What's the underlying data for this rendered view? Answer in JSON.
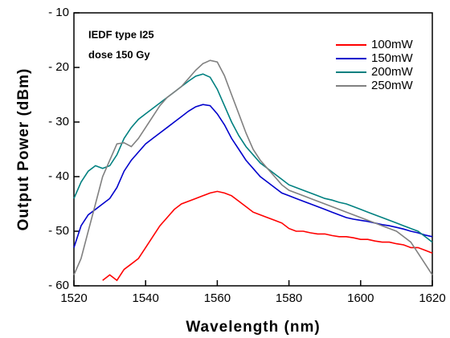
{
  "chart_data": {
    "type": "line",
    "xlabel": "Wavelength (nm)",
    "ylabel": "Output Power (dBm)",
    "annotations": [
      "IEDF type I25",
      "dose 150 Gy"
    ],
    "legend": "upper right",
    "xlim": [
      1520,
      1620
    ],
    "xticks": [
      1520,
      1540,
      1560,
      1580,
      1600,
      1620
    ],
    "ylim": [
      -60,
      -10
    ],
    "yticks": [
      {
        "value": -60,
        "label": "- 60"
      },
      {
        "value": -50,
        "label": "- 50"
      },
      {
        "value": -40,
        "label": "- 40"
      },
      {
        "value": -30,
        "label": "- 30"
      },
      {
        "value": -20,
        "label": "- 20"
      },
      {
        "value": -10,
        "label": "- 10"
      }
    ],
    "x": [
      1520,
      1522,
      1524,
      1526,
      1528,
      1530,
      1532,
      1534,
      1536,
      1538,
      1540,
      1542,
      1544,
      1546,
      1548,
      1550,
      1552,
      1554,
      1556,
      1558,
      1560,
      1562,
      1564,
      1566,
      1568,
      1570,
      1572,
      1574,
      1576,
      1578,
      1580,
      1582,
      1584,
      1586,
      1588,
      1590,
      1592,
      1594,
      1596,
      1598,
      1600,
      1602,
      1604,
      1606,
      1608,
      1610,
      1612,
      1614,
      1616,
      1618,
      1620
    ],
    "series": [
      {
        "name": "100mW",
        "color": "#ff0000",
        "values": [
          null,
          null,
          null,
          null,
          -59,
          -58,
          -59,
          -57,
          -56,
          -55,
          -53,
          -51,
          -49,
          -47.5,
          -46,
          -45,
          -44.5,
          -44,
          -43.5,
          -43,
          -42.7,
          -43,
          -43.5,
          -44.5,
          -45.5,
          -46.5,
          -47,
          -47.5,
          -48,
          -48.5,
          -49.5,
          -50,
          -50,
          -50.3,
          -50.5,
          -50.5,
          -50.8,
          -51,
          -51,
          -51.2,
          -51.5,
          -51.5,
          -51.8,
          -52,
          -52,
          -52.3,
          -52.5,
          -53,
          -53,
          -53.5,
          -54
        ]
      },
      {
        "name": "150mW",
        "color": "#0000cc",
        "values": [
          -53,
          -49,
          -47,
          -46,
          -45,
          -44,
          -42,
          -39,
          -37,
          -35.5,
          -34,
          -33,
          -32,
          -31,
          -30,
          -29,
          -28,
          -27.2,
          -26.8,
          -27,
          -28.5,
          -30.5,
          -33,
          -35,
          -37,
          -38.5,
          -40,
          -41,
          -42,
          -43,
          -43.5,
          -44,
          -44.5,
          -45,
          -45.5,
          -46,
          -46.5,
          -47,
          -47.5,
          -47.8,
          -48,
          -48.2,
          -48.5,
          -48.8,
          -49,
          -49.3,
          -49.6,
          -50,
          -50.3,
          -50.7,
          -51
        ]
      },
      {
        "name": "200mW",
        "color": "#008080",
        "values": [
          -44,
          -41,
          -39,
          -38,
          -38.5,
          -38,
          -36,
          -33,
          -31,
          -29.5,
          -28.5,
          -27.5,
          -26.5,
          -25.5,
          -24.5,
          -23.5,
          -22.5,
          -21.6,
          -21.2,
          -21.8,
          -24,
          -27,
          -30,
          -32.5,
          -34.5,
          -36,
          -37.5,
          -38.5,
          -39.5,
          -40.5,
          -41.5,
          -42,
          -42.5,
          -43,
          -43.5,
          -44,
          -44.3,
          -44.7,
          -45,
          -45.5,
          -46,
          -46.5,
          -47,
          -47.5,
          -48,
          -48.5,
          -49,
          -49.5,
          -50,
          -51,
          -52
        ]
      },
      {
        "name": "250mW",
        "color": "#808080",
        "values": [
          -58,
          -55,
          -50,
          -45,
          -40,
          -37,
          -34,
          -33.8,
          -34.5,
          -33,
          -31,
          -29,
          -27,
          -25.5,
          -24.5,
          -23.5,
          -22,
          -20.5,
          -19.3,
          -18.7,
          -19,
          -21.5,
          -25,
          -28.5,
          -32,
          -35,
          -37,
          -38.5,
          -40,
          -41.5,
          -42.5,
          -43,
          -43.5,
          -44,
          -44.5,
          -45,
          -45.5,
          -46,
          -46.5,
          -47,
          -47.5,
          -48,
          -48.5,
          -49,
          -49.5,
          -50,
          -51,
          -52,
          -54,
          -56,
          -58
        ]
      }
    ]
  }
}
